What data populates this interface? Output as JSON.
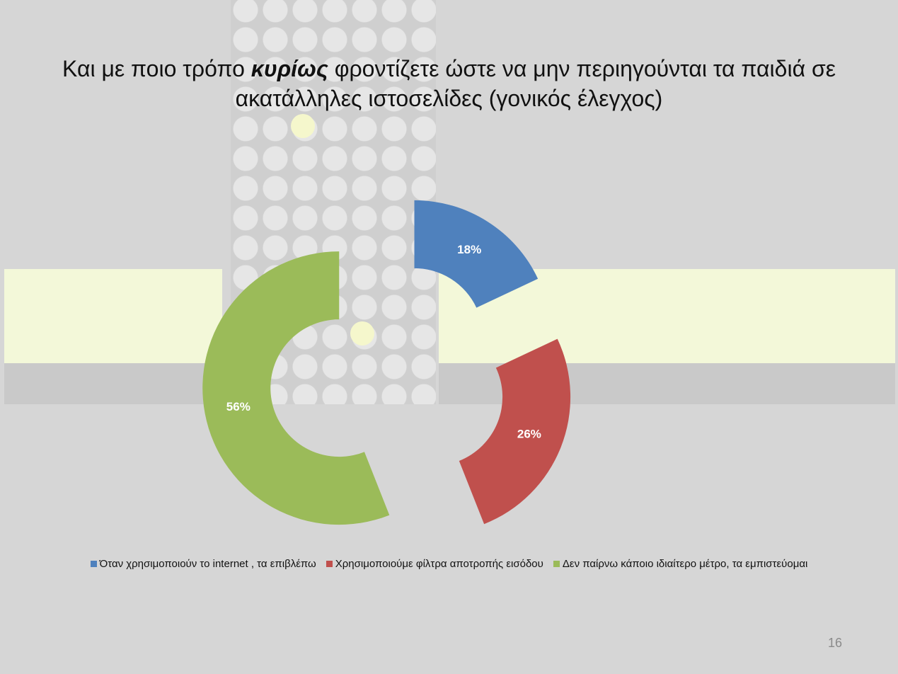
{
  "slide": {
    "title_prefix": "Και με ποιο τρόπο ",
    "title_emphasis": "κυρίως",
    "title_suffix": " φροντίζετε ώστε να μην περιηγούνται τα παιδιά σε ακατάλληλες ιστοσελίδες (γονικός έλεγχος)",
    "page_number": "16"
  },
  "chart_data": {
    "type": "pie",
    "variant": "exploded-doughnut",
    "title": "Και με ποιο τρόπο κυρίως φροντίζετε ώστε να μην περιηγούνται τα παιδιά σε ακατάλληλες ιστοσελίδες (γονικός έλεγχος)",
    "categories": [
      "Όταν χρησιμοποιούν το internet , τα επιβλέπω",
      "Χρησιμοποιούμε φίλτρα αποτροπής εισόδου",
      "Δεν παίρνω κάποιο ιδιαίτερο μέτρο, τα εμπιστεύομαι"
    ],
    "values": [
      18,
      26,
      56
    ],
    "labels": [
      "18%",
      "26%",
      "56%"
    ],
    "colors": [
      "#4f81bd",
      "#c0504d",
      "#9bbb59"
    ],
    "legend_position": "bottom"
  }
}
